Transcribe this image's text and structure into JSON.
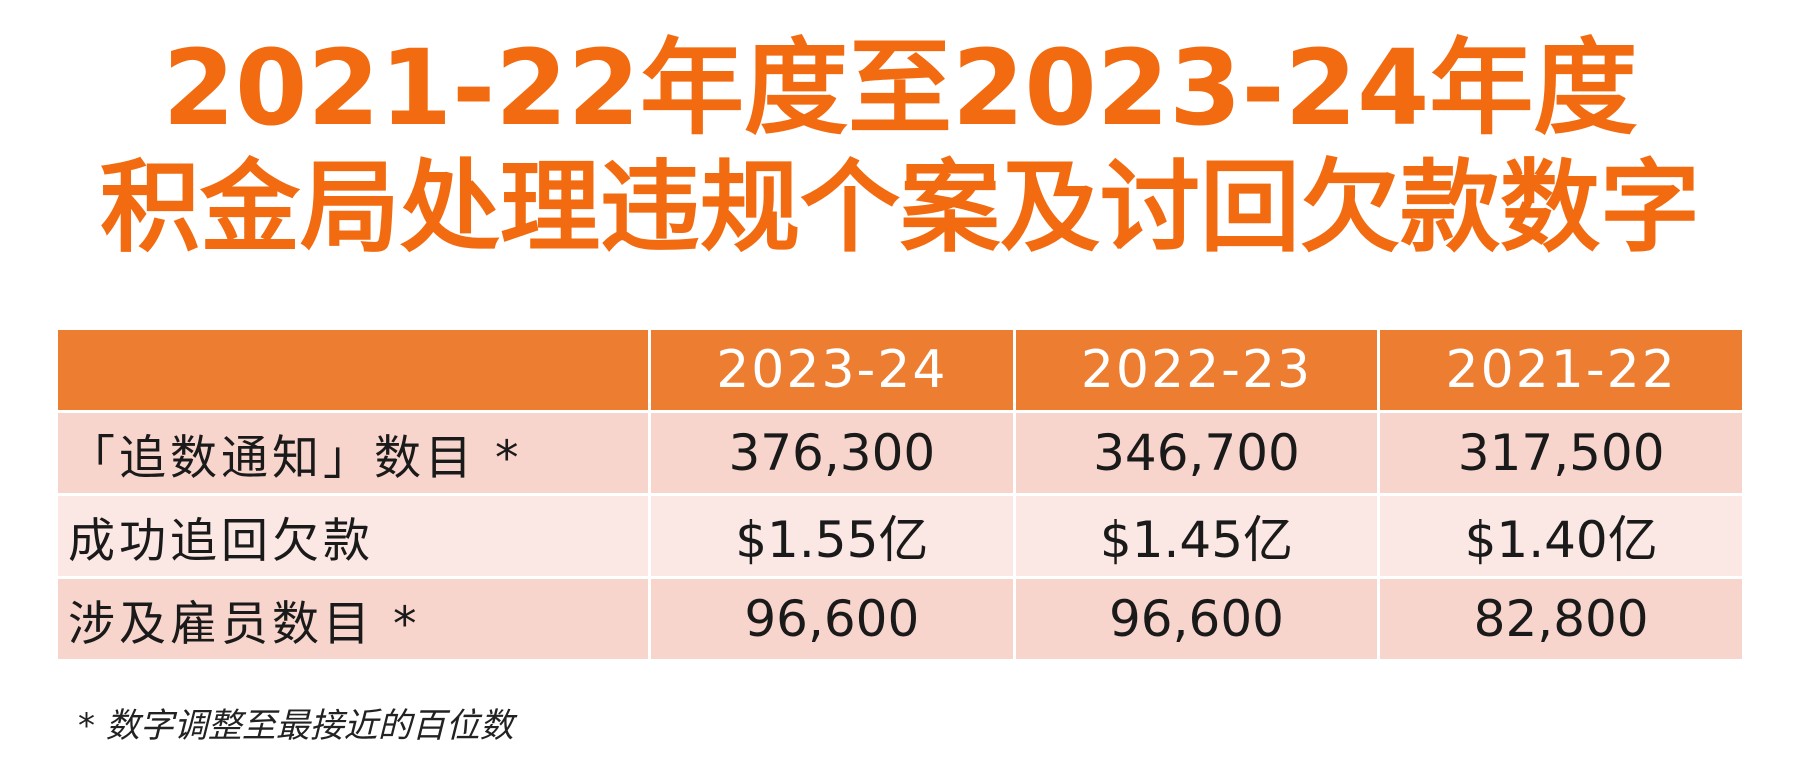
{
  "title": {
    "line1": "2021-22年度至2023-24年度",
    "line2": "积金局处理违规个案及讨回欠款数字"
  },
  "table": {
    "headers": [
      "",
      "2023-24",
      "2022-23",
      "2021-22"
    ],
    "rows": [
      {
        "label": "「追数通知」数目 *",
        "values": [
          "376,300",
          "346,700",
          "317,500"
        ]
      },
      {
        "label": "成功追回欠款",
        "values": [
          "$1.55亿",
          "$1.45亿",
          "$1.40亿"
        ]
      },
      {
        "label": "涉及雇员数目 *",
        "values": [
          "96,600",
          "96,600",
          "82,800"
        ]
      }
    ]
  },
  "footnote": "* 数字调整至最接近的百位数",
  "colors": {
    "title": "#f26b10",
    "header_bg": "#ed7d31",
    "row_dark": "#f8d5cc",
    "row_light": "#fbe8e4"
  }
}
